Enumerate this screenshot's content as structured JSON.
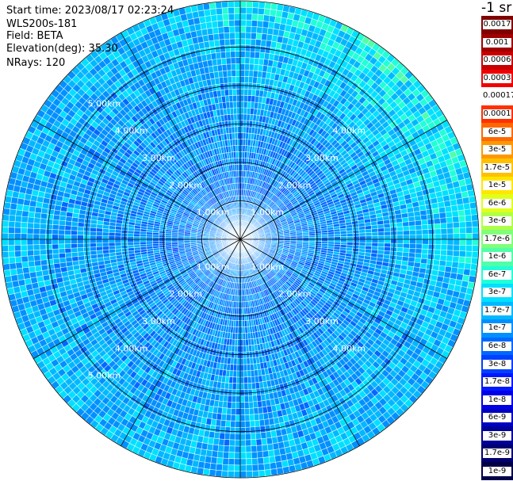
{
  "info": {
    "start_time": "Start time: 2023/08/17 02:23:24",
    "device": "WLS200s-181",
    "field": "Field: BETA",
    "elevation": "Elevation(deg): 35.30",
    "nrays": "NRays: 120"
  },
  "colorbar": {
    "unit": "-1 sr",
    "labels": [
      "0.0017",
      "0.001",
      "0.0006",
      "0.0003",
      "0.00017",
      "0.0001",
      "6e-5",
      "3e-5",
      "1.7e-5",
      "1e-5",
      "6e-6",
      "3e-6",
      "1.7e-6",
      "1e-6",
      "6e-7",
      "3e-7",
      "1.7e-7",
      "1e-7",
      "6e-8",
      "3e-8",
      "1.7e-8",
      "1e-8",
      "6e-9",
      "3e-9",
      "1.7e-9",
      "1e-9"
    ],
    "colors": [
      "#800000",
      "#a00000",
      "#c80000",
      "#f00000",
      "#ffffff",
      "#ff3000",
      "#ff6800",
      "#ff9800",
      "#ffc000",
      "#ffe600",
      "#e0ff1a",
      "#b0ff48",
      "#80ff78",
      "#50ffa8",
      "#20ffd8",
      "#00e0ff",
      "#00b8ff",
      "#0090ff",
      "#0068ff",
      "#0040ff",
      "#0018ff",
      "#0000e8",
      "#0000c0",
      "#000098",
      "#000070",
      "#000048"
    ]
  },
  "chart_data": {
    "type": "ppi",
    "title": "",
    "field": "BETA",
    "elevation_deg": 35.3,
    "n_rays": 120,
    "range_unit": "km",
    "range_rings_km": [
      1,
      2,
      3,
      4,
      5
    ],
    "ring_labels": [
      "1.00km",
      "2.00km",
      "3.00km",
      "4.00km",
      "5.00km"
    ],
    "max_range_km": 6.2,
    "spokes_deg": [
      0,
      30,
      60,
      90,
      120,
      150,
      180,
      210,
      240,
      270,
      300,
      330
    ],
    "dominant_values": "about 6e-9 to 1.7e-7 sr-1, highest (cyan) toward the outer northeast"
  }
}
